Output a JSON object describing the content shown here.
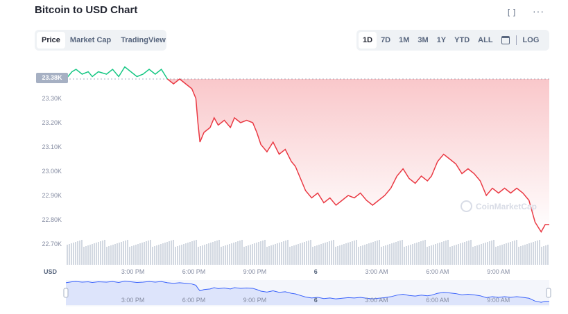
{
  "header": {
    "title": "Bitcoin to USD Chart"
  },
  "icons": {
    "fullscreen": "fullscreen-icon",
    "more": "more-icon",
    "calendar": "calendar-icon"
  },
  "tabs": [
    {
      "label": "Price",
      "active": true
    },
    {
      "label": "Market Cap",
      "active": false
    },
    {
      "label": "TradingView",
      "active": false
    }
  ],
  "ranges": [
    {
      "label": "1D",
      "active": true
    },
    {
      "label": "7D",
      "active": false
    },
    {
      "label": "1M",
      "active": false
    },
    {
      "label": "3M",
      "active": false
    },
    {
      "label": "1Y",
      "active": false
    },
    {
      "label": "YTD",
      "active": false
    },
    {
      "label": "ALL",
      "active": false
    }
  ],
  "log_label": "LOG",
  "watermark": "CoinMarketCap",
  "colors": {
    "up": "#16c784",
    "down": "#ea3943",
    "nav_line": "#3861fb",
    "nav_fill": "#dde4fb",
    "volume": "#a6b0c3"
  },
  "chart_data": {
    "type": "line",
    "currency_label": "USD",
    "reference_value": 23.38,
    "reference_label": "23.38K",
    "ylim": [
      22.7,
      23.4
    ],
    "y_ticks": [
      {
        "v": 23.3,
        "label": "23.30K"
      },
      {
        "v": 23.2,
        "label": "23.20K"
      },
      {
        "v": 23.1,
        "label": "23.10K"
      },
      {
        "v": 23.0,
        "label": "23.00K"
      },
      {
        "v": 22.9,
        "label": "22.90K"
      },
      {
        "v": 22.8,
        "label": "22.80K"
      },
      {
        "v": 22.7,
        "label": "22.70K"
      }
    ],
    "x_range": [
      11.7,
      35.5
    ],
    "x_ticks": [
      {
        "t": 15,
        "label": "3:00 PM",
        "bold": false
      },
      {
        "t": 18,
        "label": "6:00 PM",
        "bold": false
      },
      {
        "t": 21,
        "label": "9:00 PM",
        "bold": false
      },
      {
        "t": 24,
        "label": "6",
        "bold": true
      },
      {
        "t": 27,
        "label": "3:00 AM",
        "bold": false
      },
      {
        "t": 30,
        "label": "6:00 AM",
        "bold": false
      },
      {
        "t": 33,
        "label": "9:00 AM",
        "bold": false
      }
    ],
    "grid": false,
    "series": [
      {
        "x": [
          11.7,
          12.0,
          12.2,
          12.5,
          12.8,
          13.0,
          13.3,
          13.7,
          14.0,
          14.3,
          14.6,
          14.9,
          15.2,
          15.5,
          15.8,
          16.1,
          16.4,
          16.7,
          17.0,
          17.3,
          17.6,
          17.9,
          18.1,
          18.2,
          18.3,
          18.5,
          18.8,
          19.0,
          19.2,
          19.5,
          19.8,
          20.0,
          20.3,
          20.6,
          20.9,
          21.1,
          21.3,
          21.6,
          21.9,
          22.2,
          22.5,
          22.8,
          23.0,
          23.2,
          23.5,
          23.8,
          24.1,
          24.4,
          24.7,
          25.0,
          25.3,
          25.6,
          25.9,
          26.2,
          26.5,
          26.8,
          27.1,
          27.4,
          27.7,
          28.0,
          28.3,
          28.6,
          28.9,
          29.2,
          29.5,
          29.7,
          30.0,
          30.3,
          30.6,
          30.9,
          31.2,
          31.5,
          31.8,
          32.1,
          32.4,
          32.7,
          33.0,
          33.3,
          33.6,
          33.9,
          34.2,
          34.5,
          34.8,
          35.1,
          35.3,
          35.5
        ],
        "y": [
          23.38,
          23.41,
          23.42,
          23.4,
          23.41,
          23.39,
          23.41,
          23.4,
          23.42,
          23.39,
          23.43,
          23.41,
          23.39,
          23.4,
          23.42,
          23.4,
          23.42,
          23.38,
          23.36,
          23.38,
          23.36,
          23.34,
          23.3,
          23.2,
          23.12,
          23.16,
          23.18,
          23.22,
          23.19,
          23.21,
          23.18,
          23.22,
          23.2,
          23.21,
          23.2,
          23.16,
          23.11,
          23.08,
          23.12,
          23.07,
          23.09,
          23.04,
          23.02,
          22.98,
          22.92,
          22.89,
          22.91,
          22.87,
          22.89,
          22.86,
          22.88,
          22.9,
          22.89,
          22.91,
          22.88,
          22.86,
          22.88,
          22.9,
          22.93,
          22.98,
          23.01,
          22.97,
          22.95,
          22.98,
          22.96,
          22.98,
          23.04,
          23.07,
          23.05,
          23.03,
          22.99,
          23.01,
          22.99,
          22.96,
          22.9,
          22.93,
          22.91,
          22.93,
          22.91,
          22.93,
          22.91,
          22.88,
          22.79,
          22.75,
          22.78,
          22.78
        ]
      }
    ]
  }
}
